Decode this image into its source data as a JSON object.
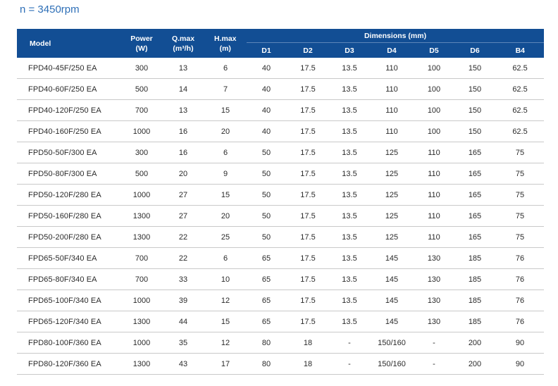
{
  "speed_label": "n = 3450rpm",
  "header": {
    "model": "Model",
    "power": "Power",
    "power_unit": "(W)",
    "qmax": "Q.max",
    "qmax_unit": "(m³/h)",
    "hmax": "H.max",
    "hmax_unit": "(m)",
    "dimensions": "Dimensions (mm)",
    "dim_cols": [
      "D1",
      "D2",
      "D3",
      "D4",
      "D5",
      "D6",
      "B4"
    ]
  },
  "rows": [
    [
      "FPD40-45F/250 EA",
      "300",
      "13",
      "6",
      "40",
      "17.5",
      "13.5",
      "110",
      "100",
      "150",
      "62.5"
    ],
    [
      "FPD40-60F/250 EA",
      "500",
      "14",
      "7",
      "40",
      "17.5",
      "13.5",
      "110",
      "100",
      "150",
      "62.5"
    ],
    [
      "FPD40-120F/250 EA",
      "700",
      "13",
      "15",
      "40",
      "17.5",
      "13.5",
      "110",
      "100",
      "150",
      "62.5"
    ],
    [
      "FPD40-160F/250 EA",
      "1000",
      "16",
      "20",
      "40",
      "17.5",
      "13.5",
      "110",
      "100",
      "150",
      "62.5"
    ],
    [
      "FPD50-50F/300 EA",
      "300",
      "16",
      "6",
      "50",
      "17.5",
      "13.5",
      "125",
      "110",
      "165",
      "75"
    ],
    [
      "FPD50-80F/300 EA",
      "500",
      "20",
      "9",
      "50",
      "17.5",
      "13.5",
      "125",
      "110",
      "165",
      "75"
    ],
    [
      "FPD50-120F/280 EA",
      "1000",
      "27",
      "15",
      "50",
      "17.5",
      "13.5",
      "125",
      "110",
      "165",
      "75"
    ],
    [
      "FPD50-160F/280 EA",
      "1300",
      "27",
      "20",
      "50",
      "17.5",
      "13.5",
      "125",
      "110",
      "165",
      "75"
    ],
    [
      "FPD50-200F/280 EA",
      "1300",
      "22",
      "25",
      "50",
      "17.5",
      "13.5",
      "125",
      "110",
      "165",
      "75"
    ],
    [
      "FPD65-50F/340 EA",
      "700",
      "22",
      "6",
      "65",
      "17.5",
      "13.5",
      "145",
      "130",
      "185",
      "76"
    ],
    [
      "FPD65-80F/340 EA",
      "700",
      "33",
      "10",
      "65",
      "17.5",
      "13.5",
      "145",
      "130",
      "185",
      "76"
    ],
    [
      "FPD65-100F/340 EA",
      "1000",
      "39",
      "12",
      "65",
      "17.5",
      "13.5",
      "145",
      "130",
      "185",
      "76"
    ],
    [
      "FPD65-120F/340 EA",
      "1300",
      "44",
      "15",
      "65",
      "17.5",
      "13.5",
      "145",
      "130",
      "185",
      "76"
    ],
    [
      "FPD80-100F/360 EA",
      "1000",
      "35",
      "12",
      "80",
      "18",
      "-",
      "150/160",
      "-",
      "200",
      "90"
    ],
    [
      "FPD80-120F/360 EA",
      "1300",
      "43",
      "17",
      "80",
      "18",
      "-",
      "150/160",
      "-",
      "200",
      "90"
    ]
  ]
}
